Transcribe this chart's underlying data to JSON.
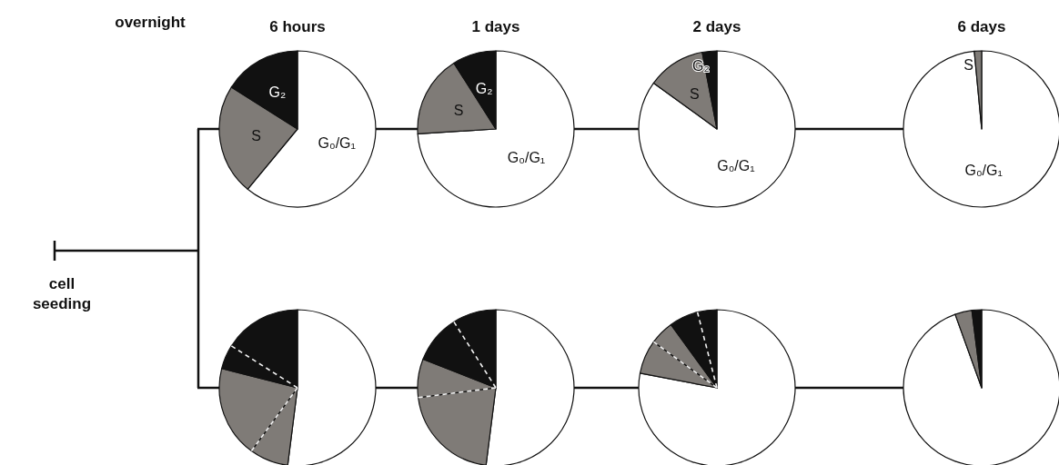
{
  "chart_data": [
    {
      "type": "pie",
      "title": "6 hours",
      "annotations": [
        "overnight",
        "cell seeding"
      ],
      "categories": [
        "G₀/G₁",
        "S",
        "G₂"
      ],
      "values": [
        61,
        23,
        16
      ],
      "colors": [
        "#ffffff",
        "#7f7b77",
        "#111111"
      ]
    },
    {
      "type": "pie",
      "title": "1 days",
      "categories": [
        "G₀/G₁",
        "S",
        "G₂"
      ],
      "values": [
        74,
        17,
        9
      ],
      "colors": [
        "#ffffff",
        "#7f7b77",
        "#111111"
      ]
    },
    {
      "type": "pie",
      "title": "2 days",
      "categories": [
        "G₀/G₁",
        "S",
        "G₂"
      ],
      "values": [
        85,
        12,
        3
      ],
      "colors": [
        "#ffffff",
        "#7f7b77",
        "#111111"
      ]
    },
    {
      "type": "pie",
      "title": "6 days",
      "categories": [
        "G₀/G₁",
        "S"
      ],
      "values": [
        98.5,
        1.5
      ],
      "colors": [
        "#ffffff",
        "#7f7b77"
      ]
    },
    {
      "type": "pie",
      "categories": [
        null,
        null,
        null,
        null,
        null
      ],
      "values": [
        52,
        8,
        19,
        5,
        16
      ],
      "colors": [
        "#ffffff",
        "#7f7b77",
        "#7f7b77",
        "#111111",
        "#111111"
      ]
    },
    {
      "type": "pie",
      "categories": [
        null,
        null,
        null,
        null,
        null
      ],
      "values": [
        52,
        21,
        8,
        10,
        9
      ],
      "colors": [
        "#ffffff",
        "#7f7b77",
        "#7f7b77",
        "#111111",
        "#111111"
      ]
    },
    {
      "type": "pie",
      "categories": [
        null,
        null,
        null,
        null,
        null
      ],
      "values": [
        78,
        7,
        5,
        6,
        4
      ],
      "colors": [
        "#ffffff",
        "#7f7b77",
        "#7f7b77",
        "#111111",
        "#111111"
      ]
    },
    {
      "type": "pie",
      "categories": [
        null,
        null,
        null
      ],
      "values": [
        94.5,
        3.5,
        2
      ],
      "colors": [
        "#ffffff",
        "#7f7b77",
        "#111111"
      ]
    }
  ]
}
